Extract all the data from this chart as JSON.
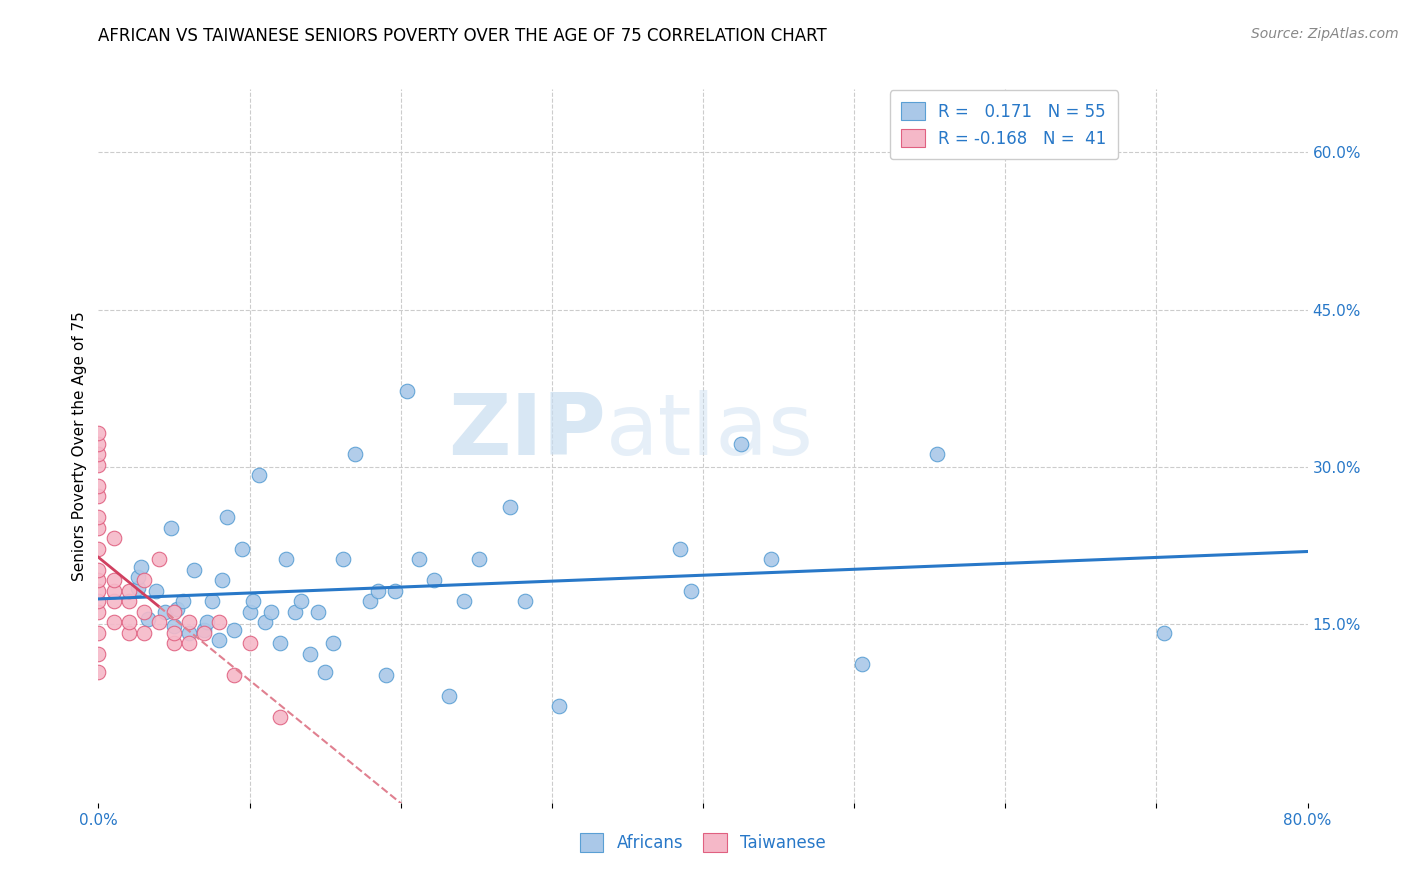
{
  "title": "AFRICAN VS TAIWANESE SENIORS POVERTY OVER THE AGE OF 75 CORRELATION CHART",
  "source": "Source: ZipAtlas.com",
  "ylabel": "Seniors Poverty Over the Age of 75",
  "xlim": [
    0.0,
    0.8
  ],
  "ylim": [
    -0.02,
    0.66
  ],
  "x_ticks": [
    0.0,
    0.1,
    0.2,
    0.3,
    0.4,
    0.5,
    0.6,
    0.7,
    0.8
  ],
  "x_tick_labels": [
    "0.0%",
    "",
    "",
    "",
    "",
    "",
    "",
    "",
    "80.0%"
  ],
  "y_ticks_right": [
    0.0,
    0.15,
    0.3,
    0.45,
    0.6
  ],
  "y_tick_labels_right": [
    "",
    "15.0%",
    "30.0%",
    "45.0%",
    "60.0%"
  ],
  "africans_x": [
    0.026,
    0.026,
    0.028,
    0.033,
    0.038,
    0.044,
    0.048,
    0.05,
    0.052,
    0.056,
    0.06,
    0.063,
    0.07,
    0.072,
    0.075,
    0.08,
    0.082,
    0.085,
    0.09,
    0.095,
    0.1,
    0.102,
    0.106,
    0.11,
    0.114,
    0.12,
    0.124,
    0.13,
    0.134,
    0.14,
    0.145,
    0.15,
    0.155,
    0.162,
    0.17,
    0.18,
    0.185,
    0.19,
    0.196,
    0.204,
    0.212,
    0.222,
    0.232,
    0.242,
    0.252,
    0.272,
    0.282,
    0.305,
    0.385,
    0.392,
    0.425,
    0.445,
    0.505,
    0.555,
    0.705
  ],
  "africans_y": [
    0.185,
    0.195,
    0.205,
    0.155,
    0.182,
    0.162,
    0.242,
    0.148,
    0.165,
    0.172,
    0.142,
    0.202,
    0.145,
    0.152,
    0.172,
    0.135,
    0.192,
    0.252,
    0.145,
    0.222,
    0.162,
    0.172,
    0.292,
    0.152,
    0.162,
    0.132,
    0.212,
    0.162,
    0.172,
    0.122,
    0.162,
    0.105,
    0.132,
    0.212,
    0.312,
    0.172,
    0.182,
    0.102,
    0.182,
    0.372,
    0.212,
    0.192,
    0.082,
    0.172,
    0.212,
    0.262,
    0.172,
    0.072,
    0.222,
    0.182,
    0.322,
    0.212,
    0.112,
    0.312,
    0.142
  ],
  "taiwanese_x": [
    0.0,
    0.0,
    0.0,
    0.0,
    0.0,
    0.0,
    0.0,
    0.0,
    0.0,
    0.0,
    0.0,
    0.0,
    0.0,
    0.0,
    0.0,
    0.0,
    0.0,
    0.01,
    0.01,
    0.01,
    0.01,
    0.01,
    0.02,
    0.02,
    0.02,
    0.02,
    0.03,
    0.03,
    0.03,
    0.04,
    0.04,
    0.05,
    0.05,
    0.05,
    0.06,
    0.06,
    0.07,
    0.08,
    0.09,
    0.1,
    0.12
  ],
  "taiwanese_y": [
    0.105,
    0.122,
    0.142,
    0.162,
    0.172,
    0.182,
    0.192,
    0.202,
    0.222,
    0.242,
    0.252,
    0.272,
    0.282,
    0.302,
    0.312,
    0.322,
    0.332,
    0.152,
    0.172,
    0.182,
    0.192,
    0.232,
    0.142,
    0.152,
    0.172,
    0.182,
    0.142,
    0.162,
    0.192,
    0.152,
    0.212,
    0.132,
    0.142,
    0.162,
    0.132,
    0.152,
    0.142,
    0.152,
    0.102,
    0.132,
    0.062
  ],
  "africans_color": "#aac8e8",
  "africans_edge": "#5a9fd4",
  "taiwanese_color": "#f5b8c8",
  "taiwanese_edge": "#e06080",
  "trend_african_color": "#2878c8",
  "trend_taiwanese_solid_color": "#d04060",
  "trend_taiwanese_dash_color": "#e08090",
  "R_african": 0.171,
  "N_african": 55,
  "R_taiwanese": -0.168,
  "N_taiwanese": 41,
  "watermark_ZIP": "ZIP",
  "watermark_atlas": "atlas",
  "background_color": "#ffffff",
  "grid_color": "#cccccc",
  "title_fontsize": 12,
  "label_fontsize": 11,
  "tick_fontsize": 11,
  "legend_fontsize": 12,
  "source_fontsize": 10
}
